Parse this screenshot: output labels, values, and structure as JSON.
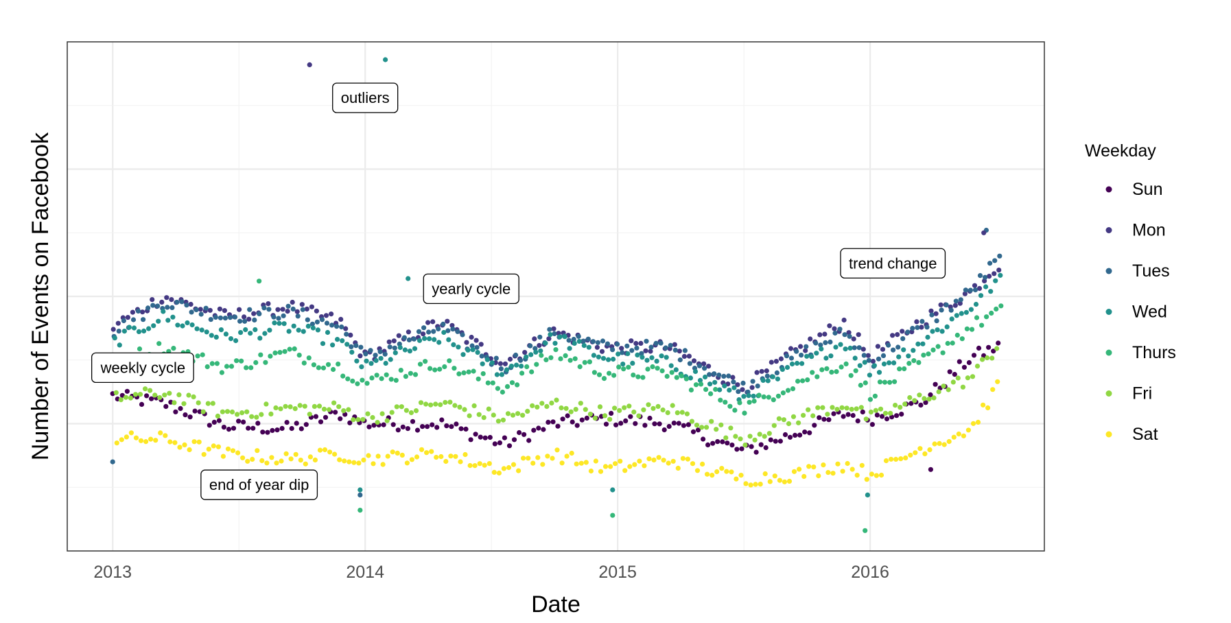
{
  "chart_data": {
    "type": "scatter",
    "title": "",
    "xlabel": "Date",
    "ylabel": "Number of Events on Facebook",
    "x_ticks": [
      "2013",
      "2014",
      "2015",
      "2016"
    ],
    "x_tick_values": [
      2013,
      2014,
      2015,
      2016
    ],
    "xlim": [
      2012.82,
      2016.69
    ],
    "y_values_relative": true,
    "ylim": [
      0,
      100
    ],
    "grid": true,
    "legend": {
      "title": "Weekday",
      "position": "right",
      "entries": [
        "Sun",
        "Mon",
        "Tues",
        "Wed",
        "Thurs",
        "Fri",
        "Sat"
      ]
    },
    "colors": {
      "Sun": "#440154",
      "Mon": "#443983",
      "Tues": "#31688e",
      "Wed": "#21918c",
      "Thurs": "#35b779",
      "Fri": "#90d743",
      "Sat": "#fde725"
    },
    "x_start": 2013.0,
    "x_step_per_week": 0.019165,
    "weeks": 184,
    "series": [
      {
        "name": "Sun",
        "offset": 0,
        "anchors": [
          [
            2013.0,
            30.5
          ],
          [
            2013.2,
            29
          ],
          [
            2013.45,
            24.5
          ],
          [
            2013.7,
            24
          ],
          [
            2013.9,
            27
          ],
          [
            2014.0,
            25
          ],
          [
            2014.3,
            25
          ],
          [
            2014.55,
            21
          ],
          [
            2014.75,
            25
          ],
          [
            2014.95,
            26
          ],
          [
            2015.2,
            25
          ],
          [
            2015.5,
            19.5
          ],
          [
            2015.7,
            23
          ],
          [
            2015.9,
            27
          ],
          [
            2016.0,
            26
          ],
          [
            2016.2,
            29
          ],
          [
            2016.4,
            38
          ],
          [
            2016.5,
            40
          ]
        ]
      },
      {
        "name": "Mon",
        "offset": 1,
        "anchors": [
          [
            2013.0,
            44
          ],
          [
            2013.2,
            50
          ],
          [
            2013.45,
            46
          ],
          [
            2013.7,
            48
          ],
          [
            2013.9,
            45
          ],
          [
            2014.0,
            38
          ],
          [
            2014.3,
            45
          ],
          [
            2014.55,
            37
          ],
          [
            2014.75,
            43
          ],
          [
            2014.95,
            40
          ],
          [
            2015.2,
            40
          ],
          [
            2015.5,
            32
          ],
          [
            2015.7,
            39
          ],
          [
            2015.9,
            45
          ],
          [
            2016.0,
            38
          ],
          [
            2016.2,
            45
          ],
          [
            2016.4,
            51
          ],
          [
            2016.5,
            56
          ]
        ]
      },
      {
        "name": "Tues",
        "offset": 2,
        "anchors": [
          [
            2013.0,
            43
          ],
          [
            2013.2,
            49
          ],
          [
            2013.45,
            46
          ],
          [
            2013.7,
            47
          ],
          [
            2013.9,
            44
          ],
          [
            2014.0,
            38
          ],
          [
            2014.3,
            44
          ],
          [
            2014.55,
            36
          ],
          [
            2014.75,
            43
          ],
          [
            2014.95,
            40
          ],
          [
            2015.2,
            40
          ],
          [
            2015.5,
            32
          ],
          [
            2015.7,
            38
          ],
          [
            2015.9,
            43
          ],
          [
            2016.0,
            37
          ],
          [
            2016.2,
            44
          ],
          [
            2016.4,
            51
          ],
          [
            2016.5,
            57
          ]
        ]
      },
      {
        "name": "Wed",
        "offset": 3,
        "anchors": [
          [
            2013.0,
            41
          ],
          [
            2013.2,
            46
          ],
          [
            2013.45,
            42
          ],
          [
            2013.7,
            44
          ],
          [
            2013.9,
            41
          ],
          [
            2014.0,
            36
          ],
          [
            2014.3,
            42
          ],
          [
            2014.55,
            35
          ],
          [
            2014.75,
            42
          ],
          [
            2014.95,
            38
          ],
          [
            2015.2,
            37
          ],
          [
            2015.5,
            30
          ],
          [
            2015.7,
            36
          ],
          [
            2015.9,
            41
          ],
          [
            2016.0,
            35
          ],
          [
            2016.2,
            41
          ],
          [
            2016.4,
            48
          ],
          [
            2016.5,
            53
          ]
        ]
      },
      {
        "name": "Thurs",
        "offset": 4,
        "anchors": [
          [
            2013.0,
            37
          ],
          [
            2013.2,
            40
          ],
          [
            2013.45,
            36
          ],
          [
            2013.7,
            39
          ],
          [
            2013.9,
            36
          ],
          [
            2014.0,
            33
          ],
          [
            2014.3,
            37
          ],
          [
            2014.55,
            32
          ],
          [
            2014.75,
            39
          ],
          [
            2014.95,
            35
          ],
          [
            2015.2,
            35
          ],
          [
            2015.5,
            28
          ],
          [
            2015.7,
            33
          ],
          [
            2015.9,
            37
          ],
          [
            2016.0,
            31
          ],
          [
            2016.2,
            37
          ],
          [
            2016.4,
            44
          ],
          [
            2016.5,
            47
          ]
        ]
      },
      {
        "name": "Fri",
        "offset": 5,
        "anchors": [
          [
            2013.0,
            30
          ],
          [
            2013.2,
            31
          ],
          [
            2013.45,
            27
          ],
          [
            2013.7,
            28
          ],
          [
            2013.9,
            28
          ],
          [
            2014.0,
            26
          ],
          [
            2014.3,
            29
          ],
          [
            2014.55,
            26
          ],
          [
            2014.75,
            29
          ],
          [
            2014.95,
            27
          ],
          [
            2015.2,
            28
          ],
          [
            2015.5,
            22
          ],
          [
            2015.7,
            26
          ],
          [
            2015.9,
            29
          ],
          [
            2016.0,
            26
          ],
          [
            2016.2,
            30
          ],
          [
            2016.4,
            34
          ],
          [
            2016.5,
            40
          ]
        ]
      },
      {
        "name": "Sat",
        "offset": 6,
        "anchors": [
          [
            2013.0,
            22
          ],
          [
            2013.2,
            22
          ],
          [
            2013.45,
            19
          ],
          [
            2013.7,
            18
          ],
          [
            2013.9,
            19
          ],
          [
            2014.0,
            18
          ],
          [
            2014.3,
            19
          ],
          [
            2014.55,
            16
          ],
          [
            2014.75,
            19
          ],
          [
            2014.95,
            16
          ],
          [
            2015.2,
            18
          ],
          [
            2015.5,
            14
          ],
          [
            2015.7,
            15
          ],
          [
            2015.9,
            17
          ],
          [
            2016.0,
            15
          ],
          [
            2016.2,
            20
          ],
          [
            2016.4,
            24
          ],
          [
            2016.5,
            32
          ]
        ]
      }
    ],
    "special_points": [
      {
        "series": "Mon",
        "x": 2013.78,
        "y": 95.5
      },
      {
        "series": "Wed",
        "x": 2014.08,
        "y": 96.5
      },
      {
        "series": "Thurs",
        "x": 2013.58,
        "y": 53
      },
      {
        "series": "Wed",
        "x": 2014.17,
        "y": 53.5
      },
      {
        "series": "Tues",
        "x": 2013.0,
        "y": 17.5
      },
      {
        "series": "Wed",
        "x": 2013.98,
        "y": 12
      },
      {
        "series": "Tues",
        "x": 2013.98,
        "y": 11
      },
      {
        "series": "Thurs",
        "x": 2013.98,
        "y": 8
      },
      {
        "series": "Thurs",
        "x": 2014.98,
        "y": 7
      },
      {
        "series": "Wed",
        "x": 2014.98,
        "y": 12
      },
      {
        "series": "Thurs",
        "x": 2015.98,
        "y": 4
      },
      {
        "series": "Wed",
        "x": 2015.99,
        "y": 11
      },
      {
        "series": "Sun",
        "x": 2016.24,
        "y": 16
      },
      {
        "series": "Tues",
        "x": 2016.46,
        "y": 63
      },
      {
        "series": "Mon",
        "x": 2016.45,
        "y": 62.5
      }
    ],
    "annotations": [
      {
        "text": "outliers",
        "x": 2014.0,
        "y": 89
      },
      {
        "text": "yearly cycle",
        "x": 2014.42,
        "y": 51.5
      },
      {
        "text": "trend change",
        "x": 2016.09,
        "y": 56.5
      },
      {
        "text": "weekly cycle",
        "x": 2013.12,
        "y": 36
      },
      {
        "text": "end of year dip",
        "x": 2013.58,
        "y": 13
      }
    ]
  }
}
